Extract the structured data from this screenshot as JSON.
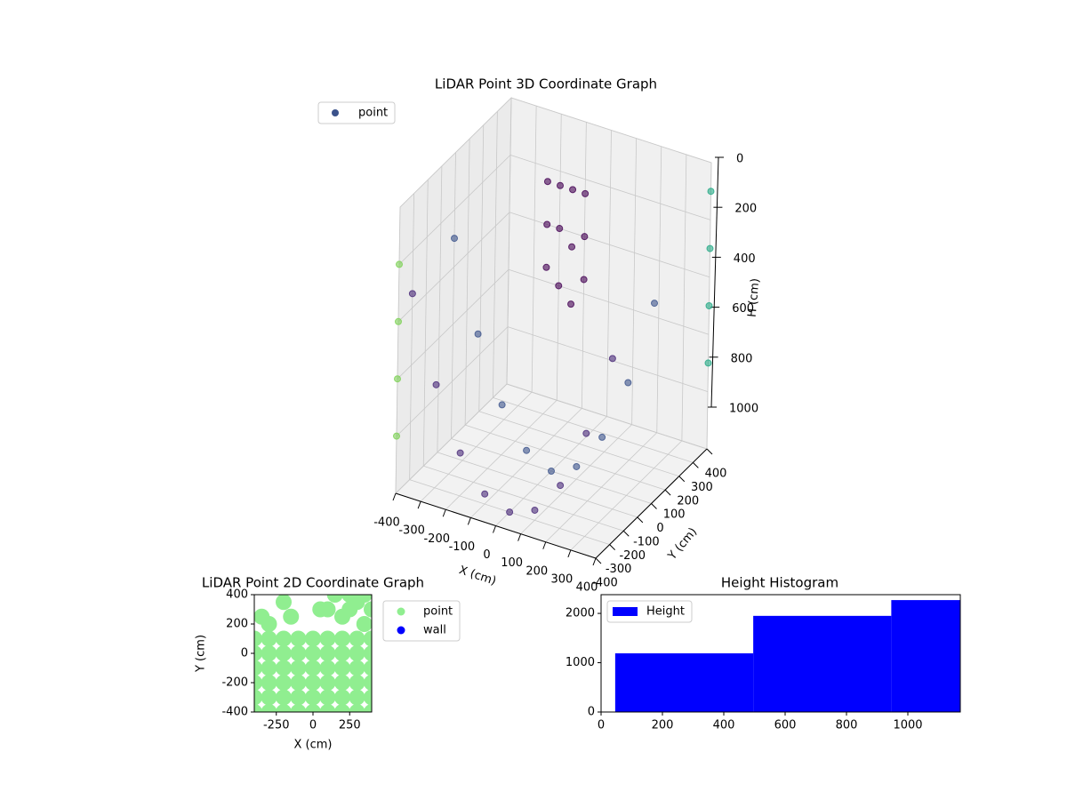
{
  "chart_data": [
    {
      "type": "scatter3d",
      "title": "LiDAR Point 3D Coordinate Graph",
      "xlabel": "X (cm)",
      "ylabel": "Y (cm)",
      "zlabel": "H (cm)",
      "xlim": [
        -400,
        400
      ],
      "ylim": [
        -400,
        400
      ],
      "zlim": [
        1000,
        0
      ],
      "xticks": [
        -400,
        -300,
        -200,
        -100,
        0,
        100,
        200,
        300,
        400
      ],
      "yticks": [
        -400,
        -300,
        -200,
        -100,
        0,
        100,
        200,
        300,
        400
      ],
      "zticks": [
        0,
        200,
        400,
        600,
        800,
        1000
      ],
      "grid": true,
      "legend": "upper left",
      "series": [
        {
          "name": "point",
          "color": "#3b528b",
          "x": [
            -400,
            -300,
            -200,
            -100,
            0,
            100,
            200,
            300,
            400
          ],
          "y": [
            0,
            0,
            0,
            0,
            0,
            0,
            0,
            0,
            0
          ],
          "h": [
            300,
            606,
            825,
            956,
            1000,
            956,
            825,
            606,
            300
          ]
        },
        {
          "color": "#482878",
          "x": [
            -400,
            -300,
            -200,
            -100,
            0,
            100,
            200,
            300,
            400
          ],
          "y": [
            -300,
            -300,
            -300,
            -300,
            -300,
            -300,
            -300,
            -300,
            -300
          ],
          "h": [
            350,
            640,
            850,
            965,
            1000,
            965,
            850,
            640,
            350
          ]
        },
        {
          "color": "#440154",
          "x": [
            -250,
            -250,
            -250,
            -200,
            -200,
            -200,
            -150,
            -150,
            -150,
            -100,
            -100,
            -100
          ],
          "y": [
            400,
            400,
            400,
            400,
            400,
            400,
            400,
            400,
            400,
            400,
            400,
            400
          ],
          "h": [
            250,
            400,
            550,
            250,
            400,
            600,
            250,
            450,
            650,
            250,
            400,
            550
          ]
        },
        {
          "color": "#7ad151",
          "x": [
            -400,
            -400,
            -400,
            -400
          ],
          "y": [
            -400,
            -400,
            -400,
            -400
          ],
          "h": [
            200,
            400,
            600,
            800
          ]
        },
        {
          "color": "#22a884",
          "x": [
            400,
            400,
            400,
            400
          ],
          "y": [
            400,
            400,
            400,
            400
          ],
          "h": [
            100,
            300,
            500,
            700
          ]
        }
      ]
    },
    {
      "type": "scatter",
      "title": "LiDAR Point 2D Coordinate Graph",
      "xlabel": "X (cm)",
      "ylabel": "Y (cm)",
      "xlim": [
        -400,
        400
      ],
      "ylim": [
        -400,
        400
      ],
      "xticks": [
        -250,
        0,
        250
      ],
      "yticks": [
        -400,
        -200,
        0,
        200,
        400
      ],
      "legend": "outside right",
      "series": [
        {
          "name": "point",
          "color": "#90ee90",
          "x": [
            -400,
            -300,
            -200,
            -100,
            0,
            100,
            200,
            300,
            400,
            -400,
            -300,
            -200,
            -100,
            0,
            100,
            200,
            300,
            400,
            -400,
            -300,
            -200,
            -100,
            0,
            100,
            200,
            300,
            400,
            -400,
            -300,
            -200,
            -100,
            0,
            100,
            200,
            300,
            400,
            -400,
            -300,
            -200,
            -100,
            0,
            100,
            200,
            300,
            400,
            -400,
            -300,
            -200,
            -100,
            0,
            100,
            200,
            300,
            400,
            -200,
            -150,
            -300,
            -350,
            50,
            100,
            250,
            300,
            200,
            350,
            150,
            250,
            350,
            400
          ],
          "y": [
            -400,
            -400,
            -400,
            -400,
            -400,
            -400,
            -400,
            -400,
            -400,
            -300,
            -300,
            -300,
            -300,
            -300,
            -300,
            -300,
            -300,
            -300,
            -200,
            -200,
            -200,
            -200,
            -200,
            -200,
            -200,
            -200,
            -200,
            -100,
            -100,
            -100,
            -100,
            -100,
            -100,
            -100,
            -100,
            -100,
            0,
            0,
            0,
            0,
            0,
            0,
            0,
            0,
            0,
            100,
            100,
            100,
            100,
            100,
            100,
            100,
            100,
            100,
            350,
            250,
            200,
            250,
            300,
            300,
            300,
            350,
            250,
            200,
            400,
            400,
            400,
            300
          ]
        },
        {
          "name": "wall",
          "color": "#0000ff",
          "x": [],
          "y": []
        }
      ]
    },
    {
      "type": "histogram",
      "title": "Height Histogram",
      "bins": [
        46,
        496,
        946,
        1171
      ],
      "series": [
        {
          "name": "Height",
          "color": "#0000ff",
          "values": [
            1190,
            1950,
            2270
          ]
        }
      ],
      "xlim": [
        0,
        1171
      ],
      "ylim": [
        0,
        2380
      ],
      "xticks": [
        0,
        200,
        400,
        600,
        800,
        1000
      ],
      "yticks": [
        0,
        1000,
        2000
      ],
      "legend": "upper left"
    }
  ]
}
